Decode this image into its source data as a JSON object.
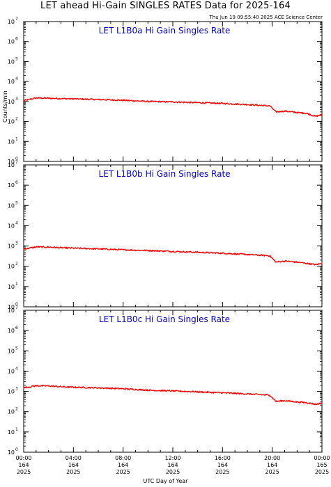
{
  "header": {
    "title": "LET ahead Hi-Gain SINGLES RATES Data for 2025-164",
    "timestamp": "Thu Jun 19 09:55:40 2025 ACE Science Center"
  },
  "axes": {
    "ylabel": "Counts/min",
    "xlabel": "UTC Day of Year",
    "x_ticks": [
      {
        "time": "00:00",
        "doy": "164",
        "year": "2025"
      },
      {
        "time": "04:00",
        "doy": "164",
        "year": "2025"
      },
      {
        "time": "08:00",
        "doy": "164",
        "year": "2025"
      },
      {
        "time": "12:00",
        "doy": "164",
        "year": "2025"
      },
      {
        "time": "16:00",
        "doy": "164",
        "year": "2025"
      },
      {
        "time": "20:00",
        "doy": "164",
        "year": "2025"
      },
      {
        "time": "00:00",
        "doy": "165",
        "year": "2025"
      }
    ],
    "y_exponents": [
      0,
      1,
      2,
      3,
      4,
      5,
      6,
      7
    ]
  },
  "colors": {
    "series": "#ff0000",
    "panel_title": "#0000cc"
  },
  "chart_data": [
    {
      "type": "line",
      "title": "LET L1B0a Hi Gain Singles Rate",
      "ylabel": "Counts/min",
      "xlabel": "UTC Day of Year",
      "x_unit": "hours since 2025-164 00:00",
      "ylim": [
        1,
        10000000
      ],
      "yscale": "log",
      "x": [
        0,
        1,
        2,
        3,
        4,
        6,
        8,
        10,
        12,
        14,
        16,
        18,
        19.8,
        20.3,
        21,
        22,
        22.7,
        23.5,
        24
      ],
      "values": [
        1100,
        1500,
        1450,
        1400,
        1350,
        1250,
        1150,
        1000,
        950,
        870,
        800,
        700,
        600,
        300,
        330,
        280,
        260,
        180,
        220
      ]
    },
    {
      "type": "line",
      "title": "LET L1B0b Hi Gain Singles Rate",
      "ylabel": "Counts/min",
      "xlabel": "UTC Day of Year",
      "x_unit": "hours since 2025-164 00:00",
      "ylim": [
        1,
        10000000
      ],
      "yscale": "log",
      "x": [
        0,
        1,
        2,
        3,
        4,
        6,
        8,
        10,
        12,
        14,
        16,
        18,
        19.8,
        20.3,
        21,
        22,
        22.7,
        23.5,
        24
      ],
      "values": [
        700,
        900,
        880,
        820,
        780,
        720,
        650,
        600,
        540,
        490,
        440,
        380,
        330,
        160,
        180,
        160,
        140,
        120,
        140
      ]
    },
    {
      "type": "line",
      "title": "LET L1B0c Hi Gain Singles Rate",
      "ylabel": "Counts/min",
      "xlabel": "UTC Day of Year",
      "x_unit": "hours since 2025-164 00:00",
      "ylim": [
        1,
        10000000
      ],
      "yscale": "log",
      "x": [
        0,
        1,
        2,
        3,
        4,
        6,
        8,
        10,
        12,
        14,
        16,
        18,
        19.8,
        20.3,
        21,
        22,
        22.7,
        23.5,
        24
      ],
      "values": [
        1500,
        1900,
        1850,
        1700,
        1600,
        1500,
        1350,
        1150,
        1050,
        950,
        850,
        750,
        650,
        320,
        350,
        300,
        280,
        230,
        260
      ]
    }
  ]
}
